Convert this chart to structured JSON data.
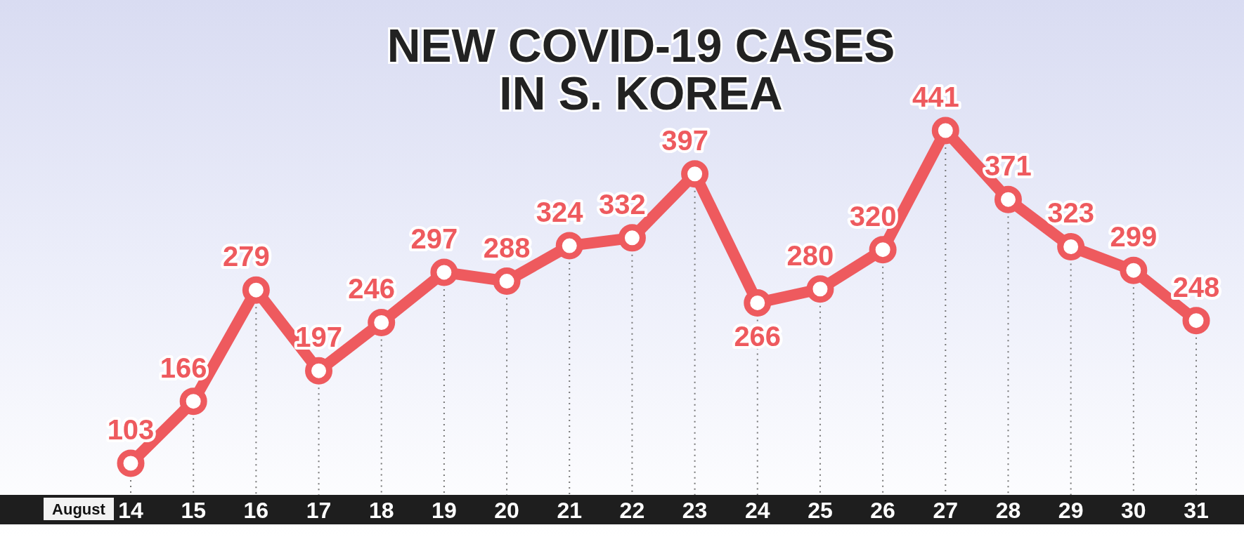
{
  "chart_data": {
    "type": "line",
    "title": "NEW COVID-19 CASES\nIN S. KOREA",
    "xlabel": "August",
    "categories": [
      "14",
      "15",
      "16",
      "17",
      "18",
      "19",
      "20",
      "21",
      "22",
      "23",
      "24",
      "25",
      "26",
      "27",
      "28",
      "29",
      "30",
      "31"
    ],
    "series": [
      {
        "color": "#ee5a5e",
        "values": [
          103,
          166,
          279,
          197,
          246,
          297,
          288,
          324,
          332,
          397,
          266,
          280,
          320,
          441,
          371,
          323,
          299,
          248
        ]
      }
    ],
    "data_labels": true,
    "marker": "circle",
    "line_style": "solid",
    "relative": false,
    "grid": "x"
  }
}
